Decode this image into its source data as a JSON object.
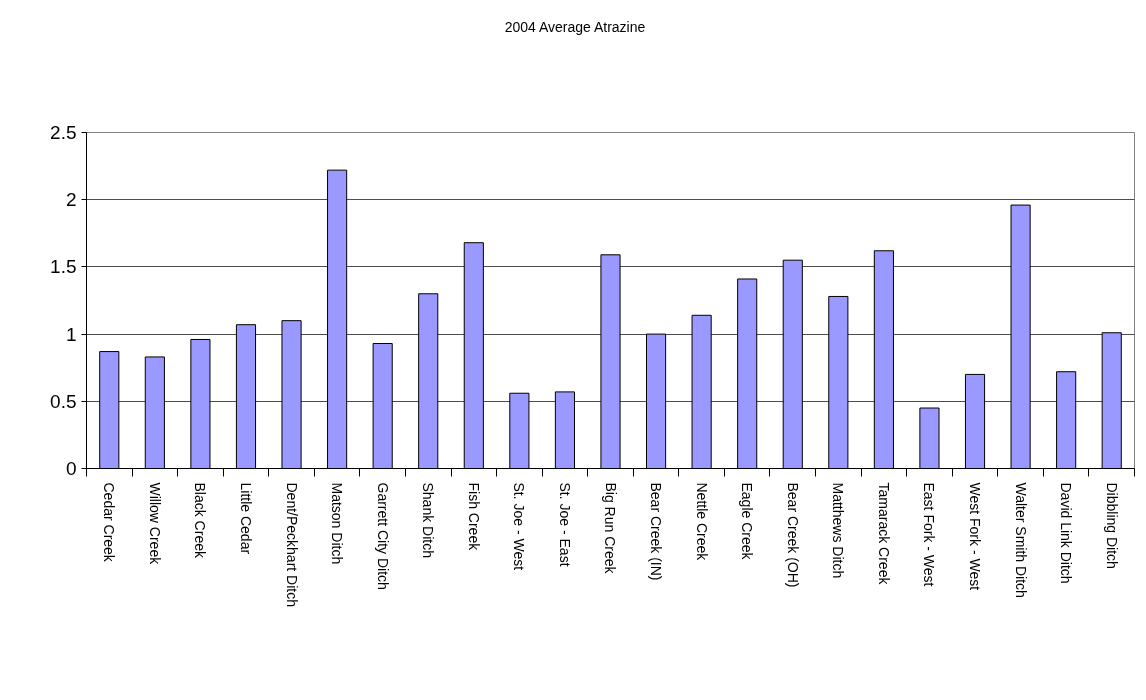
{
  "chart_data": {
    "type": "bar",
    "title": "2004 Average Atrazine",
    "categories": [
      "Cedar Creek",
      "Willow Creek",
      "Black Creek",
      "Little Cedar",
      "Dent/Peckhart Ditch",
      "Matson Ditch",
      "Garrett City Ditch",
      "Shank Ditch",
      "Fish Creek",
      "St. Joe - West",
      "St. Joe - East",
      "Big Run Creek",
      "Bear Creek (IN)",
      "Nettle Creek",
      "Eagle Creek",
      "Bear Creek (OH)",
      "Matthews Ditch",
      "Tamarack Creek",
      "East Fork - West",
      "West Fork - West",
      "Walter Smith Ditch",
      "David Link Ditch",
      "Dibbling Ditch"
    ],
    "values": [
      0.87,
      0.83,
      0.96,
      1.07,
      1.1,
      2.22,
      0.93,
      1.3,
      1.68,
      0.56,
      0.57,
      1.59,
      1.0,
      1.14,
      1.41,
      1.55,
      1.28,
      1.62,
      0.45,
      0.7,
      1.96,
      0.72,
      1.01
    ],
    "color": "#9999ff",
    "ylim": [
      0,
      2.5
    ],
    "yticks": [
      0,
      0.5,
      1,
      1.5,
      2,
      2.5
    ],
    "grid": "y"
  }
}
